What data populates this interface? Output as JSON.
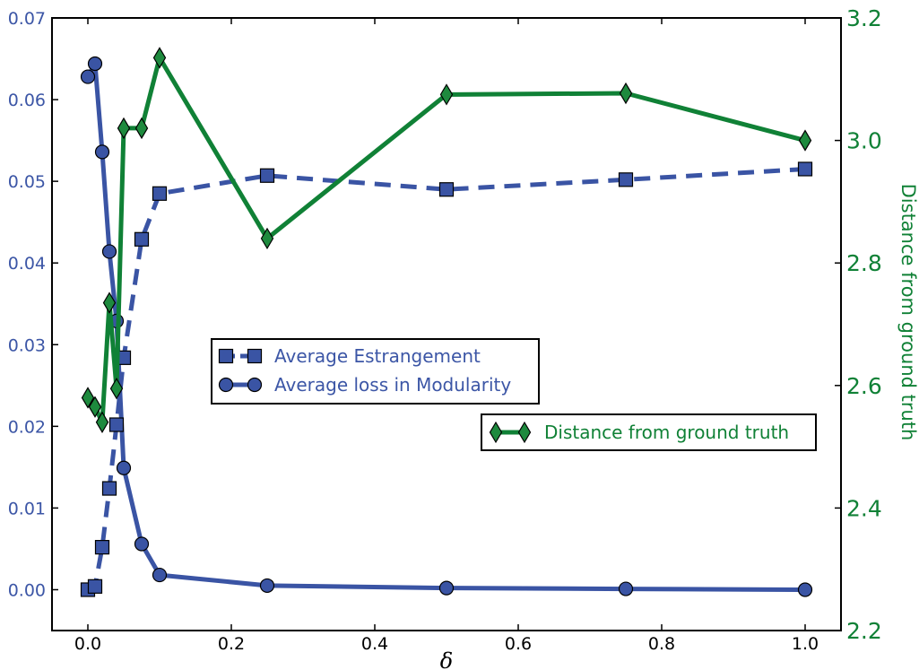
{
  "colors": {
    "blue": "#3a54a4",
    "blue_text": "#3c56a6",
    "green": "#108136",
    "green_marker": "#1e8a3e",
    "axes": "#000000"
  },
  "chart_data": {
    "type": "line",
    "xlabel": "δ",
    "ylabel_right": "Distance from ground truth",
    "xlim": [
      -0.05,
      1.05
    ],
    "ylim_left": [
      -0.005,
      0.07
    ],
    "ylim_right": [
      2.2,
      3.2
    ],
    "x_ticks": [
      "0.0",
      "0.2",
      "0.4",
      "0.6",
      "0.8",
      "1.0"
    ],
    "x_tick_values": [
      0,
      0.2,
      0.4,
      0.6,
      0.8,
      1.0
    ],
    "y_left_ticks": [
      "0.00",
      "0.01",
      "0.02",
      "0.03",
      "0.04",
      "0.05",
      "0.06",
      "0.07"
    ],
    "y_left_tick_values": [
      0,
      0.01,
      0.02,
      0.03,
      0.04,
      0.05,
      0.06,
      0.07
    ],
    "y_right_ticks": [
      "2.2",
      "2.4",
      "2.6",
      "2.8",
      "3.0",
      "3.2"
    ],
    "y_right_tick_values": [
      2.2,
      2.4,
      2.6,
      2.8,
      3.0,
      3.2
    ],
    "grid": false,
    "series": [
      {
        "name": "Average Estrangement",
        "axis": "left",
        "style": "dashed",
        "marker": "square",
        "x": [
          0,
          0.01,
          0.02,
          0.03,
          0.04,
          0.05,
          0.075,
          0.1,
          0.25,
          0.5,
          0.75,
          1.0
        ],
        "y": [
          0.0,
          0.0004,
          0.0052,
          0.0124,
          0.0202,
          0.0284,
          0.0429,
          0.0485,
          0.0507,
          0.049,
          0.0502,
          0.0515
        ]
      },
      {
        "name": "Average loss in Modularity",
        "axis": "left",
        "style": "solid",
        "marker": "circle",
        "x": [
          0,
          0.01,
          0.02,
          0.03,
          0.04,
          0.05,
          0.075,
          0.1,
          0.25,
          0.5,
          0.75,
          1.0
        ],
        "y": [
          0.0628,
          0.0644,
          0.0536,
          0.0414,
          0.0329,
          0.0149,
          0.0056,
          0.0018,
          0.0005,
          0.0002,
          0.0001,
          0.0
        ]
      },
      {
        "name": "Distance from ground truth",
        "axis": "right",
        "style": "solid",
        "marker": "diamond",
        "x": [
          0,
          0.01,
          0.02,
          0.03,
          0.04,
          0.05,
          0.075,
          0.1,
          0.25,
          0.5,
          0.75,
          1.0
        ],
        "y": [
          2.58,
          2.565,
          2.54,
          2.735,
          2.595,
          3.02,
          3.02,
          3.135,
          2.84,
          3.075,
          3.077,
          3.0
        ]
      }
    ],
    "legends": [
      {
        "placement": "center-left",
        "entries": [
          "Average Estrangement",
          "Average loss in Modularity"
        ]
      },
      {
        "placement": "center-right",
        "entries": [
          "Distance from ground truth"
        ]
      }
    ]
  }
}
